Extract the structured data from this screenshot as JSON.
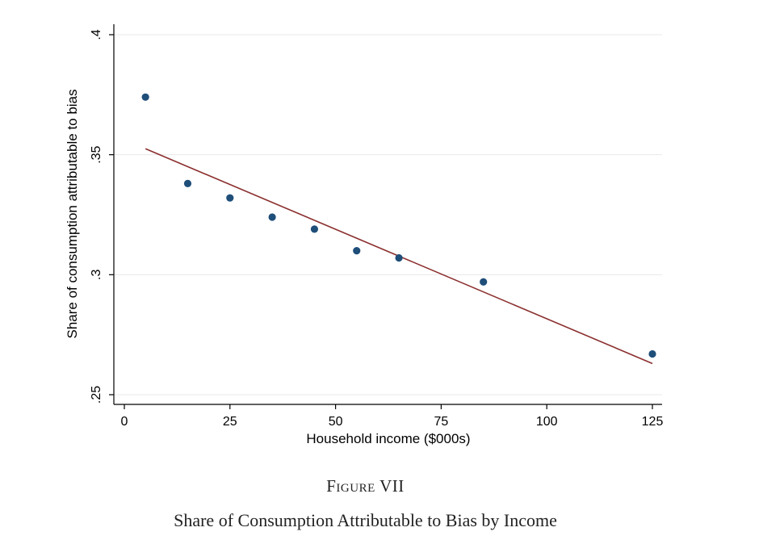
{
  "caption": {
    "label": "Figure VII",
    "title": "Share of Consumption Attributable to Bias by Income"
  },
  "chart_data": {
    "type": "scatter",
    "xlabel": "Household income ($000s)",
    "ylabel": "Share of consumption attributable to bias",
    "xlim": [
      0,
      125
    ],
    "ylim": [
      0.25,
      0.4
    ],
    "x_ticks": [
      {
        "value": 0,
        "label": "0"
      },
      {
        "value": 25,
        "label": "25"
      },
      {
        "value": 50,
        "label": "50"
      },
      {
        "value": 75,
        "label": "75"
      },
      {
        "value": 100,
        "label": "100"
      },
      {
        "value": 125,
        "label": "125"
      }
    ],
    "y_ticks": [
      {
        "value": 0.25,
        "label": ".25"
      },
      {
        "value": 0.3,
        "label": ".3"
      },
      {
        "value": 0.35,
        "label": ".35"
      },
      {
        "value": 0.4,
        "label": ".4"
      }
    ],
    "grid": true,
    "series": [
      {
        "kind": "points",
        "color": "#1f4e79",
        "points": [
          {
            "x": 5,
            "y": 0.374
          },
          {
            "x": 15,
            "y": 0.338
          },
          {
            "x": 25,
            "y": 0.332
          },
          {
            "x": 35,
            "y": 0.324
          },
          {
            "x": 45,
            "y": 0.319
          },
          {
            "x": 55,
            "y": 0.31
          },
          {
            "x": 65,
            "y": 0.307
          },
          {
            "x": 85,
            "y": 0.297
          },
          {
            "x": 125,
            "y": 0.267
          }
        ]
      },
      {
        "kind": "fit-line",
        "color": "#8b2e2e",
        "points": [
          {
            "x": 5,
            "y": 0.3525
          },
          {
            "x": 125,
            "y": 0.263
          }
        ]
      }
    ]
  }
}
